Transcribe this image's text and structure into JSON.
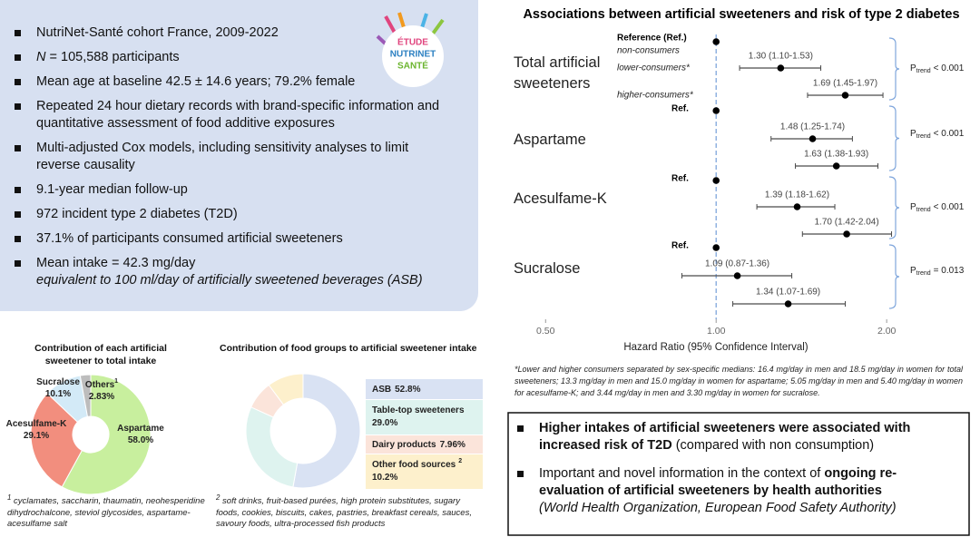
{
  "logo": {
    "line1": "ÉTUDE",
    "line2": "NUTRINET",
    "line3": "SANTÉ"
  },
  "summary": [
    "NutriNet-Santé cohort France, 2009-2022",
    [
      "N",
      "= 105,588 participants"
    ],
    "Mean age at baseline 42.5 ± 14.6 years; 79.2% female",
    "Repeated 24 hour dietary records with brand-specific information and quantitative assessment of food additive exposures",
    "Multi-adjusted Cox models, including sensitivity analyses to limit reverse causality",
    "9.1-year median follow-up",
    "972 incident type 2 diabetes (T2D)",
    "37.1% of participants consumed artificial sweeteners",
    [
      "Mean intake = 42.3 mg/day",
      "equivalent to 100 ml/day of artificially sweetened beverages (ASB)"
    ]
  ],
  "chart_data": [
    {
      "type": "donut",
      "title": "Contribution of each artificial sweetener to total intake",
      "categories": [
        "Aspartame",
        "Acesulfame-K",
        "Sucralose",
        "Others"
      ],
      "values": [
        58.0,
        29.1,
        10.1,
        2.83
      ],
      "value_labels": [
        "58.0%",
        "29.1%",
        "10.1%",
        "2.83%"
      ],
      "colors": [
        "#c8ef9e",
        "#f28e7e",
        "#d3eaf7",
        "#bdbdbd"
      ],
      "note_markers": [
        null,
        null,
        null,
        "1"
      ],
      "footnote": "cyclamates, saccharin, thaumatin, neohesperidine dihydrochalcone, steviol glycosides, aspartame-acesulfame salt"
    },
    {
      "type": "donut",
      "title": "Contribution of food groups to artificial sweetener intake",
      "categories": [
        "ASB",
        "Table-top sweeteners",
        "Dairy products",
        "Other food sources"
      ],
      "values": [
        52.8,
        29.0,
        7.96,
        10.2
      ],
      "value_labels": [
        "52.8%",
        "29.0%",
        "7.96%",
        "10.2%"
      ],
      "colors": [
        "#d9e2f3",
        "#def3ef",
        "#fbe4da",
        "#fdf0cc"
      ],
      "note_markers": [
        null,
        null,
        null,
        "2"
      ],
      "footnote": "soft drinks, fruit-based purées, high protein substitutes, sugary foods, cookies, biscuits, cakes, pastries, breakfast cereals, sauces, savoury foods, ultra-processed fish products"
    },
    {
      "type": "forest",
      "title": "Associations between artificial sweeteners and risk of type 2 diabetes",
      "xlabel": "Hazard Ratio (95% Confidence Interval)",
      "xscale": "log",
      "xlim": [
        0.42,
        2.2
      ],
      "xticks": [
        {
          "value": 0.5,
          "label": "0.50"
        },
        {
          "value": 1,
          "label": "1.00"
        },
        {
          "value": 2,
          "label": "2.00"
        }
      ],
      "reference_line": 1,
      "color": "#000000",
      "ci_color": "#4a4a4a",
      "reference_color": "#7fa6dc",
      "p_symbol": "P",
      "p_subscript": "trend",
      "groups": [
        {
          "name": "Total artificial sweeteners",
          "ref_title": "Reference (Ref.)",
          "p_trend": "< 0.001",
          "rows": [
            {
              "label": "non-consumers",
              "hr": 1
            },
            {
              "label": "lower-consumers*",
              "hr": 1.3,
              "lo": 1.1,
              "hi": 1.53,
              "value_label": "1.30 (1.10-1.53)"
            },
            {
              "label": "higher-consumers*",
              "hr": 1.69,
              "lo": 1.45,
              "hi": 1.97,
              "value_label": "1.69 (1.45-1.97)"
            }
          ]
        },
        {
          "name": "Aspartame",
          "ref_title": "Ref.",
          "p_trend": "< 0.001",
          "rows": [
            {
              "hr": 1
            },
            {
              "hr": 1.48,
              "lo": 1.25,
              "hi": 1.74,
              "value_label": "1.48 (1.25-1.74)"
            },
            {
              "hr": 1.63,
              "lo": 1.38,
              "hi": 1.93,
              "value_label": "1.63 (1.38-1.93)"
            }
          ]
        },
        {
          "name": "Acesulfame-K",
          "ref_title": "Ref.",
          "p_trend": "< 0.001",
          "rows": [
            {
              "hr": 1
            },
            {
              "hr": 1.39,
              "lo": 1.18,
              "hi": 1.62,
              "value_label": "1.39 (1.18-1.62)"
            },
            {
              "hr": 1.7,
              "lo": 1.42,
              "hi": 2.04,
              "value_label": "1.70 (1.42-2.04)"
            }
          ]
        },
        {
          "name": "Sucralose",
          "ref_title": "Ref.",
          "p_trend": "= 0.013",
          "rows": [
            {
              "hr": 1
            },
            {
              "hr": 1.09,
              "lo": 0.87,
              "hi": 1.36,
              "value_label": "1.09 (0.87-1.36)"
            },
            {
              "hr": 1.34,
              "lo": 1.07,
              "hi": 1.69,
              "value_label": "1.34 (1.07-1.69)"
            }
          ]
        }
      ]
    }
  ],
  "forest_footnote": "*Lower and higher consumers separated by sex-specific medians: 16.4 mg/day in men and 18.5 mg/day in women for total sweeteners; 13.3 mg/day in men and 15.0 mg/day in women for aspartame; 5.05 mg/day in men and 5.40 mg/day in women for acesulfame-K; and 3.44 mg/day in men and 3.30 mg/day in women for sucralose.",
  "conclusions": [
    [
      "Higher intakes of artificial sweeteners were associated with increased risk of T2D",
      "(compared with non consumption)"
    ],
    [
      "Important and novel information in the context of",
      "ongoing re-evaluation of artificial sweeteners by health authorities",
      "(World Health Organization, European Food Safety Authority)"
    ]
  ]
}
